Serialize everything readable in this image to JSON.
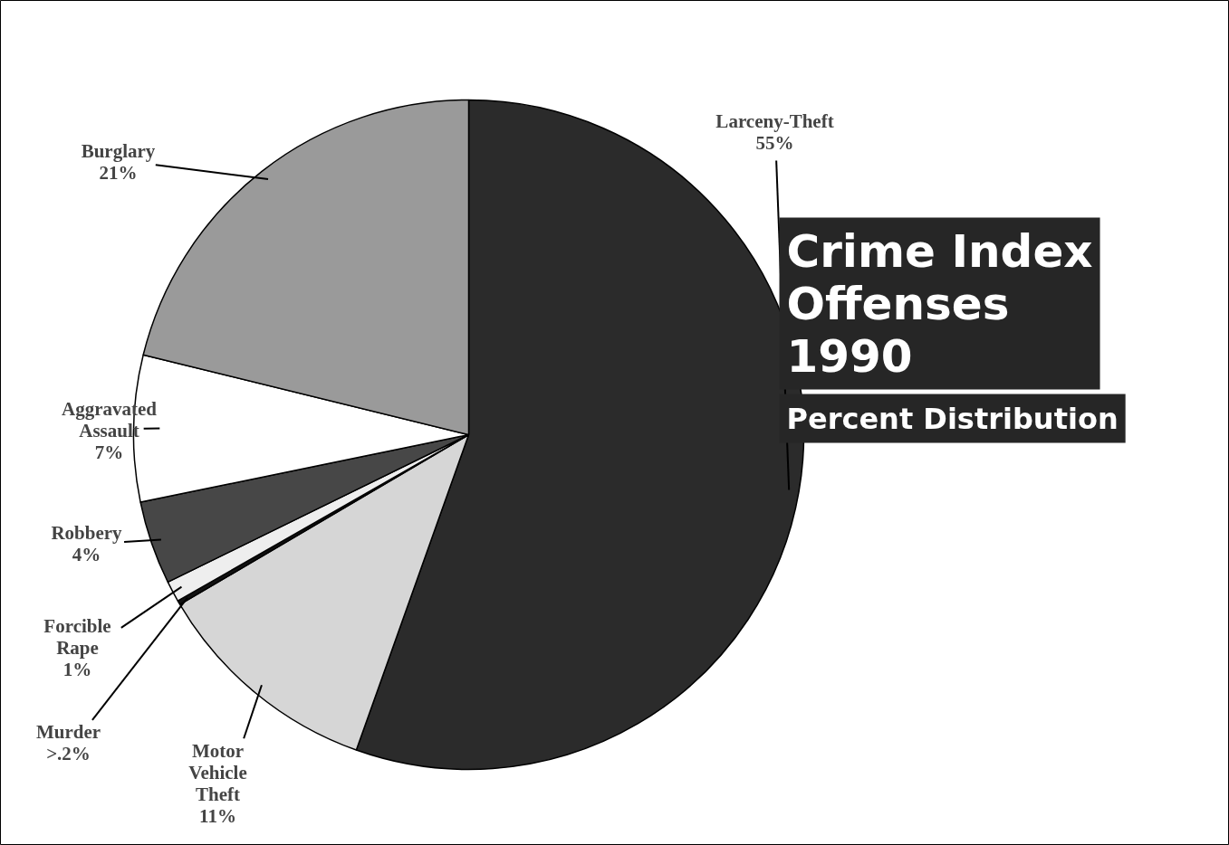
{
  "chart_data": {
    "type": "pie",
    "title": "Crime Index Offenses 1990",
    "subtitle": "Percent Distribution",
    "categories": [
      "Larceny-Theft",
      "Motor Vehicle Theft",
      "Murder",
      "Forcible Rape",
      "Robbery",
      "Aggravated Assault",
      "Burglary"
    ],
    "values": [
      55,
      11,
      0.2,
      1,
      4,
      7,
      21
    ],
    "value_labels": [
      "55%",
      "11%",
      ">.2%",
      "1%",
      "4%",
      "7%",
      "21%"
    ],
    "colors": [
      "#2b2b2b",
      "#d6d6d6",
      "#111111",
      "#eeeeee",
      "#474747",
      "#ffffff",
      "#9a9a9a"
    ]
  }
}
